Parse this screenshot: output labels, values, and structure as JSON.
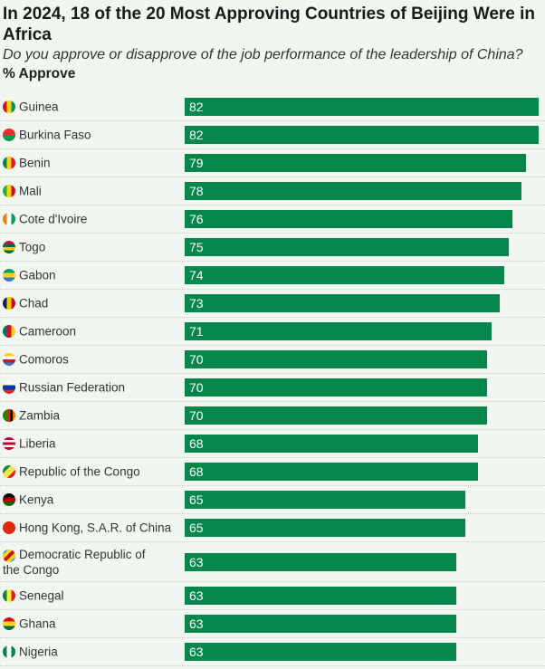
{
  "chart_data": {
    "type": "bar",
    "orientation": "horizontal",
    "title": "In 2024, 18 of the 20 Most Approving Countries of Beijing Were in Africa",
    "subtitle": "Do you approve or disapprove of the job performance of the leadership of China?",
    "measure": "% Approve",
    "xlim": [
      0,
      82
    ],
    "bar_color": "#05874b",
    "categories": [
      "Guinea",
      "Burkina Faso",
      "Benin",
      "Mali",
      "Cote d'Ivoire",
      "Togo",
      "Gabon",
      "Chad",
      "Cameroon",
      "Comoros",
      "Russian Federation",
      "Zambia",
      "Liberia",
      "Republic of the Congo",
      "Kenya",
      "Hong Kong, S.A.R. of China",
      "Democratic Republic of the Congo",
      "Senegal",
      "Ghana",
      "Nigeria"
    ],
    "values": [
      82,
      82,
      79,
      78,
      76,
      75,
      74,
      73,
      71,
      70,
      70,
      70,
      68,
      68,
      65,
      65,
      63,
      63,
      63,
      63
    ],
    "flags": [
      {
        "dir": "v",
        "colors": [
          "#ce1126",
          "#fcd116",
          "#009460"
        ]
      },
      {
        "dir": "h",
        "colors": [
          "#ef2b2d",
          "#009e49"
        ]
      },
      {
        "dir": "v",
        "colors": [
          "#008751",
          "#fcd116",
          "#e8112d"
        ]
      },
      {
        "dir": "v",
        "colors": [
          "#14b53a",
          "#fcd116",
          "#ce1126"
        ]
      },
      {
        "dir": "v",
        "colors": [
          "#f77f00",
          "#ffffff",
          "#009e60"
        ]
      },
      {
        "dir": "h",
        "colors": [
          "#d21034",
          "#006a4e",
          "#ffce00",
          "#006a4e"
        ]
      },
      {
        "dir": "h",
        "colors": [
          "#009e60",
          "#fcd116",
          "#3a75c4"
        ]
      },
      {
        "dir": "v",
        "colors": [
          "#002664",
          "#fecb00",
          "#c60c30"
        ]
      },
      {
        "dir": "v",
        "colors": [
          "#007a5e",
          "#ce1126",
          "#fcd116"
        ]
      },
      {
        "dir": "h",
        "colors": [
          "#ffc61e",
          "#ffffff",
          "#ce1126",
          "#3a75c4"
        ]
      },
      {
        "dir": "h",
        "colors": [
          "#ffffff",
          "#0039a6",
          "#d52b1e"
        ]
      },
      {
        "dir": "v",
        "colors": [
          "#198a00",
          "#198a00",
          "#de2010",
          "#000000",
          "#ef7d00"
        ]
      },
      {
        "dir": "h",
        "colors": [
          "#bf0a30",
          "#ffffff",
          "#bf0a30",
          "#ffffff",
          "#bf0a30"
        ]
      },
      {
        "dir": "d",
        "colors": [
          "#009543",
          "#fbde4a",
          "#dc241f"
        ]
      },
      {
        "dir": "h",
        "colors": [
          "#000000",
          "#bb0000",
          "#006600"
        ]
      },
      {
        "dir": "h",
        "colors": [
          "#de2910",
          "#de2910"
        ]
      },
      {
        "dir": "d",
        "colors": [
          "#007fff",
          "#f7d618",
          "#ce1021",
          "#f7d618",
          "#007fff"
        ]
      },
      {
        "dir": "v",
        "colors": [
          "#00853f",
          "#fdef42",
          "#e31b23"
        ]
      },
      {
        "dir": "h",
        "colors": [
          "#ce1126",
          "#fcd116",
          "#006b3f"
        ]
      },
      {
        "dir": "v",
        "colors": [
          "#008751",
          "#ffffff",
          "#008751"
        ]
      }
    ]
  }
}
